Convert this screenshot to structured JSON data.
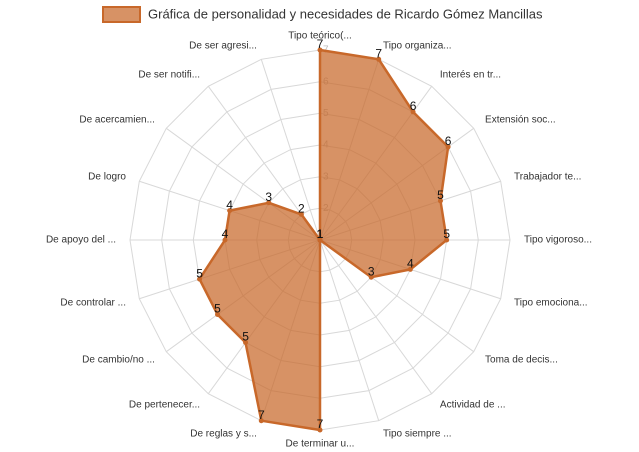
{
  "chart_data": {
    "type": "radar",
    "categories": [
      "Tipo teórico(...",
      "Tipo organiza...",
      "Interés en tr...",
      "Extensión soc...",
      "Trabajador te...",
      "Tipo vigoroso...",
      "Tipo emociona...",
      "Toma de decis...",
      "Actividad de ...",
      "Tipo siempre ...",
      "De terminar u...",
      "De reglas y s...",
      "De pertenecer...",
      "De cambio/no ...",
      "De controlar ...",
      "De apoyo del ...",
      "De logro",
      "De acercamien...",
      "De ser notifi...",
      "De ser agresi..."
    ],
    "series": [
      {
        "name": "Gráfica de personalidad y necesidades de Ricardo Gómez Mancillas",
        "color": "#c8682a",
        "values": [
          7,
          7,
          6,
          6,
          5,
          5,
          4,
          3,
          1,
          1,
          7,
          7,
          5,
          5,
          5,
          4,
          4,
          3,
          2,
          1
        ]
      }
    ],
    "ylim": [
      1,
      7
    ],
    "yticks": [
      2,
      3,
      4,
      5,
      6,
      7
    ],
    "grid": true,
    "legend": "top"
  }
}
